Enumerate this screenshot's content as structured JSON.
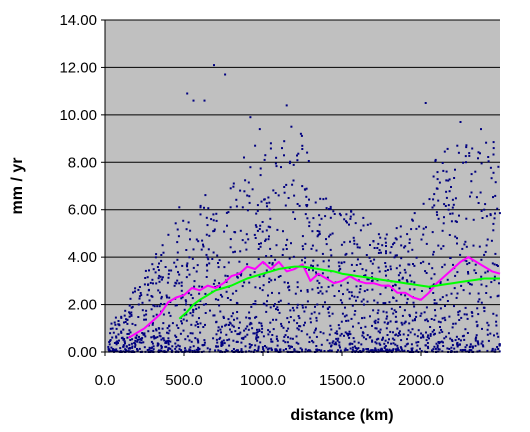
{
  "chart_data": {
    "type": "scatter",
    "xlabel": "distance (km)",
    "ylabel": "mm / yr",
    "xlim": [
      0,
      2500
    ],
    "ylim": [
      0,
      14
    ],
    "x_ticks": [
      "0.0",
      "500.0",
      "1000.0",
      "1500.0",
      "2000.0"
    ],
    "y_ticks": [
      "0.00",
      "2.00",
      "4.00",
      "6.00",
      "8.00",
      "10.00",
      "12.00",
      "14.00"
    ],
    "grid": "horizontal",
    "legend": "none",
    "plot_background": "#c0c0c0",
    "series": [
      {
        "kind": "scatter",
        "color": "#000080",
        "points": [
          [
            690,
            12.1
          ],
          [
            760,
            11.7
          ],
          [
            520,
            10.9
          ],
          [
            560,
            10.6
          ],
          [
            630,
            10.6
          ],
          [
            1150,
            10.4
          ],
          [
            2030,
            10.5
          ],
          [
            920,
            9.9
          ],
          [
            980,
            9.4
          ],
          [
            1180,
            9.5
          ],
          [
            1240,
            9.2
          ],
          [
            2250,
            9.7
          ],
          [
            2380,
            9.4
          ],
          [
            950,
            8.7
          ],
          [
            1050,
            8.8
          ],
          [
            1120,
            8.6
          ],
          [
            2230,
            8.7
          ],
          [
            2460,
            8.6
          ],
          [
            880,
            8.2
          ],
          [
            1010,
            8.1
          ],
          [
            2080,
            7.4
          ],
          [
            2320,
            7.5
          ],
          [
            2100,
            6.9
          ],
          [
            470,
            6.1
          ],
          [
            900,
            6.6
          ],
          [
            1280,
            6.2
          ],
          [
            2400,
            6.0
          ]
        ],
        "generated_cloud": {
          "count": 1950,
          "seed": 12345,
          "segments": [
            {
              "x_range": [
                20,
                500
              ],
              "y_max_start": 1.0,
              "y_max_end": 6.0
            },
            {
              "x_range": [
                500,
                1000
              ],
              "y_max_start": 6.0,
              "y_max_end": 8.5
            },
            {
              "x_range": [
                1000,
                1300
              ],
              "y_max_start": 8.5,
              "y_max_end": 9.5
            },
            {
              "x_range": [
                1300,
                1800
              ],
              "y_max_start": 7.0,
              "y_max_end": 5.0
            },
            {
              "x_range": [
                1800,
                2050
              ],
              "y_max_start": 5.0,
              "y_max_end": 6.5
            },
            {
              "x_range": [
                2050,
                2500
              ],
              "y_max_start": 8.5,
              "y_max_end": 9.0
            }
          ],
          "low_concentration": 0.6
        }
      },
      {
        "kind": "line",
        "color": "#ff00ff",
        "points": [
          [
            150,
            0.6
          ],
          [
            200,
            0.8
          ],
          [
            250,
            1.0
          ],
          [
            300,
            1.3
          ],
          [
            350,
            1.6
          ],
          [
            400,
            2.1
          ],
          [
            450,
            2.3
          ],
          [
            500,
            2.4
          ],
          [
            550,
            2.7
          ],
          [
            600,
            2.6
          ],
          [
            650,
            2.8
          ],
          [
            700,
            2.7
          ],
          [
            750,
            2.9
          ],
          [
            800,
            3.2
          ],
          [
            850,
            3.3
          ],
          [
            900,
            3.6
          ],
          [
            950,
            3.5
          ],
          [
            1000,
            3.8
          ],
          [
            1050,
            3.5
          ],
          [
            1100,
            3.8
          ],
          [
            1150,
            3.4
          ],
          [
            1200,
            3.5
          ],
          [
            1250,
            3.7
          ],
          [
            1300,
            3.0
          ],
          [
            1350,
            3.3
          ],
          [
            1400,
            3.1
          ],
          [
            1450,
            2.9
          ],
          [
            1500,
            3.0
          ],
          [
            1550,
            3.2
          ],
          [
            1600,
            3.0
          ],
          [
            1650,
            2.9
          ],
          [
            1700,
            2.9
          ],
          [
            1750,
            2.8
          ],
          [
            1800,
            2.8
          ],
          [
            1850,
            2.5
          ],
          [
            1900,
            2.5
          ],
          [
            1950,
            2.3
          ],
          [
            2000,
            2.2
          ],
          [
            2050,
            2.5
          ],
          [
            2100,
            2.9
          ],
          [
            2150,
            3.2
          ],
          [
            2200,
            3.5
          ],
          [
            2250,
            3.8
          ],
          [
            2300,
            4.0
          ],
          [
            2350,
            3.8
          ],
          [
            2400,
            3.6
          ],
          [
            2450,
            3.4
          ],
          [
            2500,
            3.3
          ]
        ]
      },
      {
        "kind": "line",
        "color": "#00ff00",
        "points": [
          [
            470,
            1.4
          ],
          [
            520,
            1.7
          ],
          [
            560,
            2.0
          ],
          [
            600,
            2.2
          ],
          [
            650,
            2.4
          ],
          [
            700,
            2.6
          ],
          [
            750,
            2.7
          ],
          [
            800,
            2.8
          ],
          [
            850,
            2.95
          ],
          [
            900,
            3.1
          ],
          [
            950,
            3.2
          ],
          [
            1000,
            3.3
          ],
          [
            1050,
            3.4
          ],
          [
            1100,
            3.5
          ],
          [
            1150,
            3.55
          ],
          [
            1200,
            3.6
          ],
          [
            1250,
            3.6
          ],
          [
            1300,
            3.55
          ],
          [
            1350,
            3.5
          ],
          [
            1400,
            3.45
          ],
          [
            1450,
            3.4
          ],
          [
            1500,
            3.3
          ],
          [
            1550,
            3.25
          ],
          [
            1600,
            3.2
          ],
          [
            1650,
            3.15
          ],
          [
            1700,
            3.1
          ],
          [
            1750,
            3.05
          ],
          [
            1800,
            3.0
          ],
          [
            1850,
            2.95
          ],
          [
            1900,
            2.9
          ],
          [
            1950,
            2.85
          ],
          [
            2000,
            2.8
          ],
          [
            2050,
            2.75
          ],
          [
            2100,
            2.8
          ],
          [
            2150,
            2.85
          ],
          [
            2200,
            2.9
          ],
          [
            2250,
            2.95
          ],
          [
            2300,
            3.0
          ],
          [
            2350,
            3.05
          ],
          [
            2400,
            3.1
          ],
          [
            2450,
            3.1
          ],
          [
            2500,
            3.1
          ]
        ]
      }
    ]
  }
}
